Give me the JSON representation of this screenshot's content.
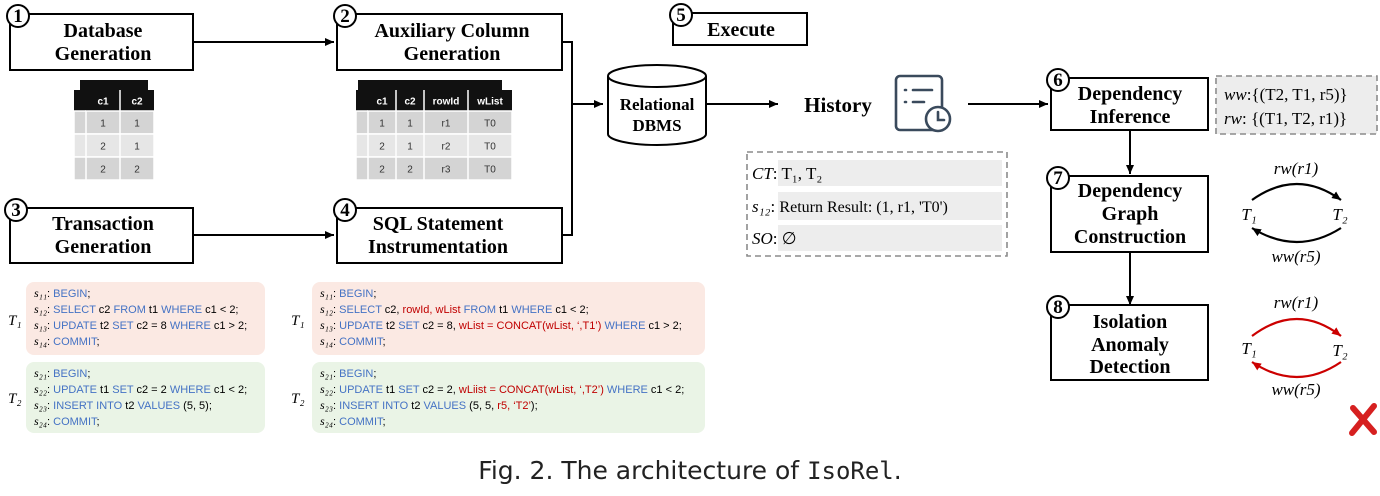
{
  "steps": {
    "db_gen": {
      "num": "1",
      "line1": "Database",
      "line2": "Generation"
    },
    "aux_col": {
      "num": "2",
      "line1": "Auxiliary Column",
      "line2": "Generation"
    },
    "txn_gen": {
      "num": "3",
      "line1": "Transaction",
      "line2": "Generation"
    },
    "sql_instr": {
      "num": "4",
      "line1": "SQL Statement",
      "line2": "Instrumentation"
    },
    "execute": {
      "num": "5",
      "label": "Execute"
    },
    "dep_inf": {
      "num": "6",
      "line1": "Dependency",
      "line2": "Inference"
    },
    "dep_graph": {
      "num": "7",
      "line1": "Dependency",
      "line2": "Graph",
      "line3": "Construction"
    },
    "anomaly": {
      "num": "8",
      "line1": "Isolation",
      "line2": "Anomaly",
      "line3": "Detection"
    }
  },
  "dbms": {
    "line1": "Relational",
    "line2": "DBMS"
  },
  "history": {
    "label": "History"
  },
  "table_small": {
    "headers": [
      "c1",
      "c2"
    ],
    "rows": [
      [
        "1",
        "1"
      ],
      [
        "2",
        "1"
      ],
      [
        "2",
        "2"
      ]
    ]
  },
  "table_aux": {
    "headers": [
      "c1",
      "c2",
      "rowId",
      "wList"
    ],
    "rows": [
      [
        "1",
        "1",
        "r1",
        "T0"
      ],
      [
        "2",
        "1",
        "r2",
        "T0"
      ],
      [
        "2",
        "2",
        "r3",
        "T0"
      ]
    ]
  },
  "history_box": {
    "ct_label": "CT",
    "ct_value": "T₁, T₂",
    "s12_label": "s₁₂",
    "s12_value": "Return Result: (1, r1, 'T0')",
    "so_label": "SO",
    "so_value": "∅"
  },
  "deps_box": {
    "ww_label": "ww",
    "ww_value": ":{(T2, T1, r5)}",
    "rw_label": "rw",
    "rw_value": ": {(T1, T2, r1)}"
  },
  "graph": {
    "rw_label": "rw(r1)",
    "ww_label": "ww(r5)",
    "t1": "T₁",
    "t2": "T₂",
    "colors": {
      "normal": "#000000",
      "anomaly": "#cc0000"
    }
  },
  "code_left": {
    "t1_label": "T₁",
    "t1_lines": [
      {
        "s": "s₁₁",
        "parts": [
          [
            "k",
            "BEGIN"
          ],
          [
            "n",
            ";"
          ]
        ]
      },
      {
        "s": "s₁₂",
        "parts": [
          [
            "k",
            "SELECT"
          ],
          [
            "n",
            " c2 "
          ],
          [
            "k",
            "FROM"
          ],
          [
            "n",
            " t1 "
          ],
          [
            "k",
            "WHERE"
          ],
          [
            "n",
            " c1 < 2;"
          ]
        ]
      },
      {
        "s": "s₁₃",
        "parts": [
          [
            "k",
            "UPDATE"
          ],
          [
            "n",
            " t2 "
          ],
          [
            "k",
            "SET"
          ],
          [
            "n",
            " c2 = 8 "
          ],
          [
            "k",
            "WHERE"
          ],
          [
            "n",
            " c1 > 2;"
          ]
        ]
      },
      {
        "s": "s₁₄",
        "parts": [
          [
            "k",
            "COMMIT"
          ],
          [
            "n",
            ";"
          ]
        ]
      }
    ],
    "t2_label": "T₂",
    "t2_lines": [
      {
        "s": "s₂₁",
        "parts": [
          [
            "k",
            "BEGIN"
          ],
          [
            "n",
            ";"
          ]
        ]
      },
      {
        "s": "s₂₂",
        "parts": [
          [
            "k",
            "UPDATE"
          ],
          [
            "n",
            " t1 "
          ],
          [
            "k",
            "SET"
          ],
          [
            "n",
            " c2 = 2 "
          ],
          [
            "k",
            "WHERE"
          ],
          [
            "n",
            " c1 < 2;"
          ]
        ]
      },
      {
        "s": "s₂₃",
        "parts": [
          [
            "k",
            "INSERT INTO"
          ],
          [
            "n",
            " t2 "
          ],
          [
            "k",
            "VALUES"
          ],
          [
            "n",
            " (5, 5);"
          ]
        ]
      },
      {
        "s": "s₂₄",
        "parts": [
          [
            "k",
            "COMMIT"
          ],
          [
            "n",
            ";"
          ]
        ]
      }
    ]
  },
  "code_right": {
    "t1_label": "T₁",
    "t1_lines": [
      {
        "s": "s₁₁",
        "parts": [
          [
            "k",
            "BEGIN"
          ],
          [
            "n",
            ";"
          ]
        ]
      },
      {
        "s": "s₁₂",
        "parts": [
          [
            "k",
            "SELECT"
          ],
          [
            "n",
            " c2, "
          ],
          [
            "r",
            "rowId, wList"
          ],
          [
            "n",
            " "
          ],
          [
            "k",
            "FROM"
          ],
          [
            "n",
            " t1 "
          ],
          [
            "k",
            "WHERE"
          ],
          [
            "n",
            " c1 < 2;"
          ]
        ]
      },
      {
        "s": "s₁₃",
        "parts": [
          [
            "k",
            "UPDATE"
          ],
          [
            "n",
            " t2 "
          ],
          [
            "k",
            "SET"
          ],
          [
            "n",
            " c2 = 8, "
          ],
          [
            "r",
            "wList = CONCAT(wList, ‘,T1’)"
          ],
          [
            "n",
            " "
          ],
          [
            "k",
            "WHERE"
          ],
          [
            "n",
            " c1 > 2;"
          ]
        ]
      },
      {
        "s": "s₁₄",
        "parts": [
          [
            "k",
            "COMMIT"
          ],
          [
            "n",
            ";"
          ]
        ]
      }
    ],
    "t2_label": "T₂",
    "t2_lines": [
      {
        "s": "s₂₁",
        "parts": [
          [
            "k",
            "BEGIN"
          ],
          [
            "n",
            ";"
          ]
        ]
      },
      {
        "s": "s₂₂",
        "parts": [
          [
            "k",
            "UPDATE"
          ],
          [
            "n",
            " t1 "
          ],
          [
            "k",
            "SET"
          ],
          [
            "n",
            " c2 = 2, "
          ],
          [
            "r",
            "wLiist = CONCAT(wList, ‘,T2’)"
          ],
          [
            "n",
            " "
          ],
          [
            "k",
            "WHERE"
          ],
          [
            "n",
            " c1 < 2;"
          ]
        ]
      },
      {
        "s": "s₂₃",
        "parts": [
          [
            "k",
            "INSERT INTO"
          ],
          [
            "n",
            " t2 "
          ],
          [
            "k",
            "VALUES"
          ],
          [
            "n",
            " (5, 5, "
          ],
          [
            "r",
            "r5, ‘T2’"
          ],
          [
            "n",
            ");"
          ]
        ]
      },
      {
        "s": "s₂₄",
        "parts": [
          [
            "k",
            "COMMIT"
          ],
          [
            "n",
            ";"
          ]
        ]
      }
    ]
  },
  "caption": {
    "prefix": "Fig. 2.  The architecture of ",
    "name": "IsoRel",
    "suffix": "."
  },
  "colors": {
    "keyword": "#4472c4",
    "instrumented": "#c00000",
    "t1_bg": "#fbe9e3",
    "t2_bg": "#eaf4e6",
    "cell_gray": "#d9d9d9",
    "header_black": "#111111"
  },
  "icons": {
    "history": "history-log-icon",
    "failure": "red-x-icon"
  }
}
